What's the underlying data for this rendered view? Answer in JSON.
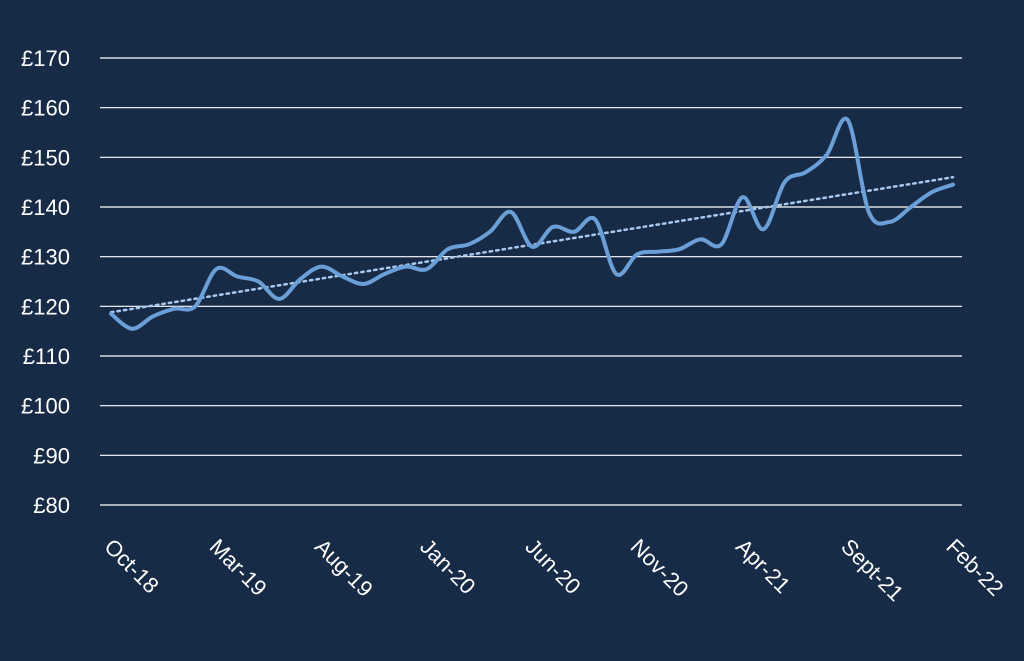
{
  "colors": {
    "background": "#172b47",
    "gridline": "#ffffff",
    "series_line": "#6a9fd8",
    "trendline": "#a9c8ee",
    "text": "#ffffff"
  },
  "chart_data": {
    "type": "line",
    "title": "",
    "xlabel": "",
    "ylabel": "",
    "grid": true,
    "ylim": [
      80,
      170
    ],
    "yticks": [
      "£80",
      "£90",
      "£100",
      "£110",
      "£120",
      "£130",
      "£140",
      "£150",
      "£160",
      "£170"
    ],
    "xticks": [
      "Oct-18",
      "Mar-19",
      "Aug-19",
      "Jan-20",
      "Jun-20",
      "Nov-20",
      "Apr-21",
      "Sept-21",
      "Feb-22"
    ],
    "x": [
      "Oct-18",
      "Nov-18",
      "Dec-18",
      "Jan-19",
      "Feb-19",
      "Mar-19",
      "Apr-19",
      "May-19",
      "Jun-19",
      "Jul-19",
      "Aug-19",
      "Sep-19",
      "Oct-19",
      "Nov-19",
      "Dec-19",
      "Jan-20",
      "Feb-20",
      "Mar-20",
      "Apr-20",
      "May-20",
      "Jun-20",
      "Jul-20",
      "Aug-20",
      "Sep-20",
      "Oct-20",
      "Nov-20",
      "Dec-20",
      "Jan-21",
      "Feb-21",
      "Mar-21",
      "Apr-21",
      "May-21",
      "Jun-21",
      "Jul-21",
      "Aug-21",
      "Sep-21",
      "Oct-21",
      "Nov-21",
      "Dec-21",
      "Jan-22",
      "Feb-22"
    ],
    "series": [
      {
        "values": [
          118.5,
          115.5,
          118,
          119.5,
          120,
          127.5,
          126,
          125,
          121.5,
          125.5,
          128,
          126,
          124.5,
          126.5,
          128,
          127.5,
          131.5,
          132.5,
          135,
          139,
          132,
          136,
          135,
          137.5,
          126.5,
          130.5,
          131,
          131.5,
          133.5,
          132.5,
          142,
          135.5,
          145,
          147,
          150.5,
          157.5,
          139,
          137,
          140,
          143,
          144.5
        ]
      }
    ],
    "trendline": {
      "type": "linear",
      "start": 118.8,
      "end": 146.0
    }
  }
}
